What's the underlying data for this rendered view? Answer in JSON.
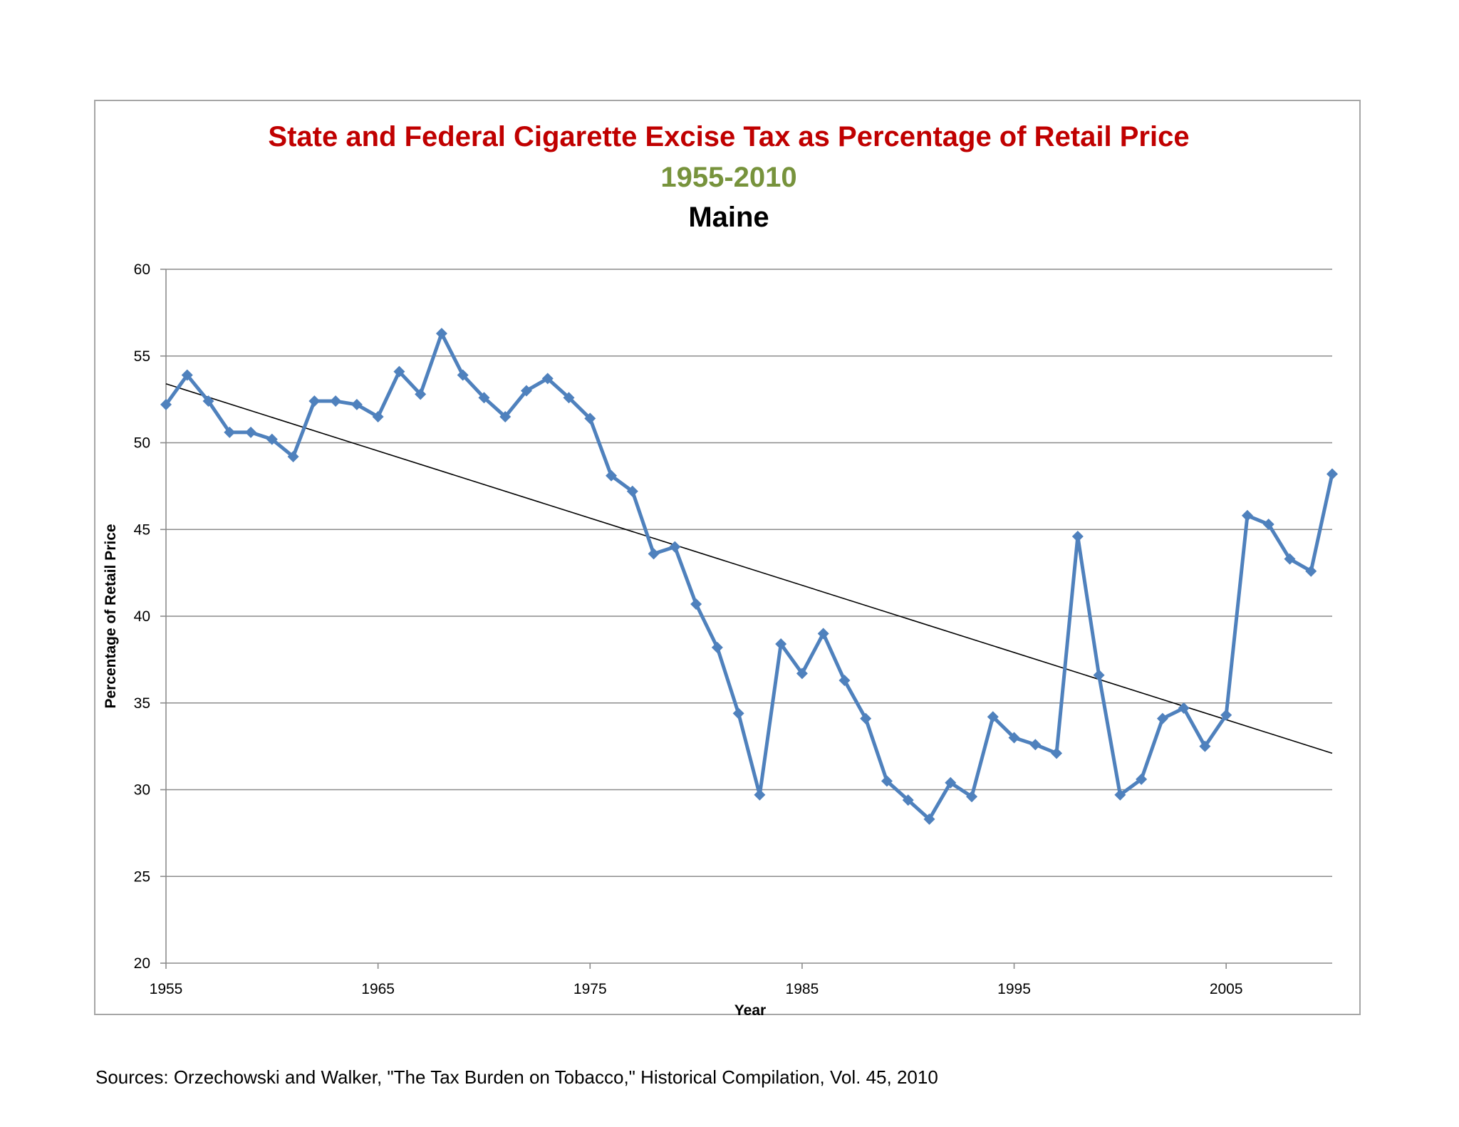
{
  "chart_data": {
    "type": "line",
    "title": "State and Federal Cigarette Excise Tax as Percentage of Retail Price",
    "subtitle": "1955-2010",
    "state": "Maine",
    "xlabel": "Year",
    "ylabel": "Percentage of Retail Price",
    "xlim": [
      1955,
      2010
    ],
    "ylim": [
      20,
      60
    ],
    "x_ticks": [
      1955,
      1965,
      1975,
      1985,
      1995,
      2005
    ],
    "y_ticks": [
      20,
      25,
      30,
      35,
      40,
      45,
      50,
      55,
      60
    ],
    "grid": true,
    "series": [
      {
        "name": "Maine",
        "color": "#4f81bd",
        "x": [
          1955,
          1956,
          1957,
          1958,
          1959,
          1960,
          1961,
          1962,
          1963,
          1964,
          1965,
          1966,
          1967,
          1968,
          1969,
          1970,
          1971,
          1972,
          1973,
          1974,
          1975,
          1976,
          1977,
          1978,
          1979,
          1980,
          1981,
          1982,
          1983,
          1984,
          1985,
          1986,
          1987,
          1988,
          1989,
          1990,
          1991,
          1992,
          1993,
          1994,
          1995,
          1996,
          1997,
          1998,
          1999,
          2000,
          2001,
          2002,
          2003,
          2004,
          2005,
          2006,
          2007,
          2008,
          2009,
          2010
        ],
        "values": [
          52.2,
          53.9,
          52.4,
          50.6,
          50.6,
          50.2,
          49.2,
          52.4,
          52.4,
          52.2,
          51.5,
          54.1,
          52.8,
          56.3,
          53.9,
          52.6,
          51.5,
          53.0,
          53.7,
          52.6,
          51.4,
          48.1,
          47.2,
          43.6,
          44.0,
          40.7,
          38.2,
          34.4,
          29.7,
          38.4,
          36.7,
          39.0,
          36.3,
          34.1,
          30.5,
          29.4,
          28.3,
          30.4,
          29.6,
          34.2,
          33.0,
          32.6,
          32.1,
          44.6,
          36.6,
          29.7,
          30.6,
          34.1,
          34.7,
          32.5,
          34.3,
          45.8,
          45.3,
          43.3,
          42.6,
          48.2
        ]
      }
    ],
    "trendline": {
      "type": "linear",
      "color": "#000000",
      "x": [
        1955,
        2010
      ],
      "values": [
        53.4,
        32.1
      ]
    }
  },
  "footer": {
    "source": "Sources: Orzechowski and Walker, \"The Tax Burden on Tobacco,\" Historical Compilation, Vol. 45, 2010"
  }
}
